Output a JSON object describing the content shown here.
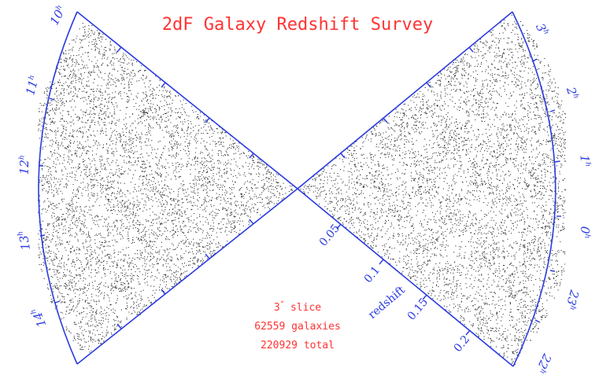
{
  "title": "2dF Galaxy Redshift Survey",
  "colors": {
    "axis": "#2b3be0",
    "title": "#ff3333",
    "points": "#3a3a3a",
    "background": "#ffffff"
  },
  "left_wedge": {
    "hour_labels": [
      {
        "hour": "10",
        "unit": "h"
      },
      {
        "hour": "11",
        "unit": "h"
      },
      {
        "hour": "12",
        "unit": "h"
      },
      {
        "hour": "13",
        "unit": "h"
      },
      {
        "hour": "14",
        "unit": "h"
      }
    ]
  },
  "right_wedge": {
    "hour_labels": [
      {
        "hour": "3",
        "unit": "h"
      },
      {
        "hour": "2",
        "unit": "h"
      },
      {
        "hour": "1",
        "unit": "h"
      },
      {
        "hour": "0",
        "unit": "h"
      },
      {
        "hour": "23",
        "unit": "h"
      },
      {
        "hour": "22",
        "unit": "h"
      }
    ],
    "redshift_ticks": [
      "0.05",
      "0.1",
      "0.15",
      "0.2"
    ],
    "redshift_label": "redshift"
  },
  "notes": {
    "slice": "3",
    "slice_suffix": "slice",
    "galaxies": "62559 galaxies",
    "total": "220929 total"
  }
}
